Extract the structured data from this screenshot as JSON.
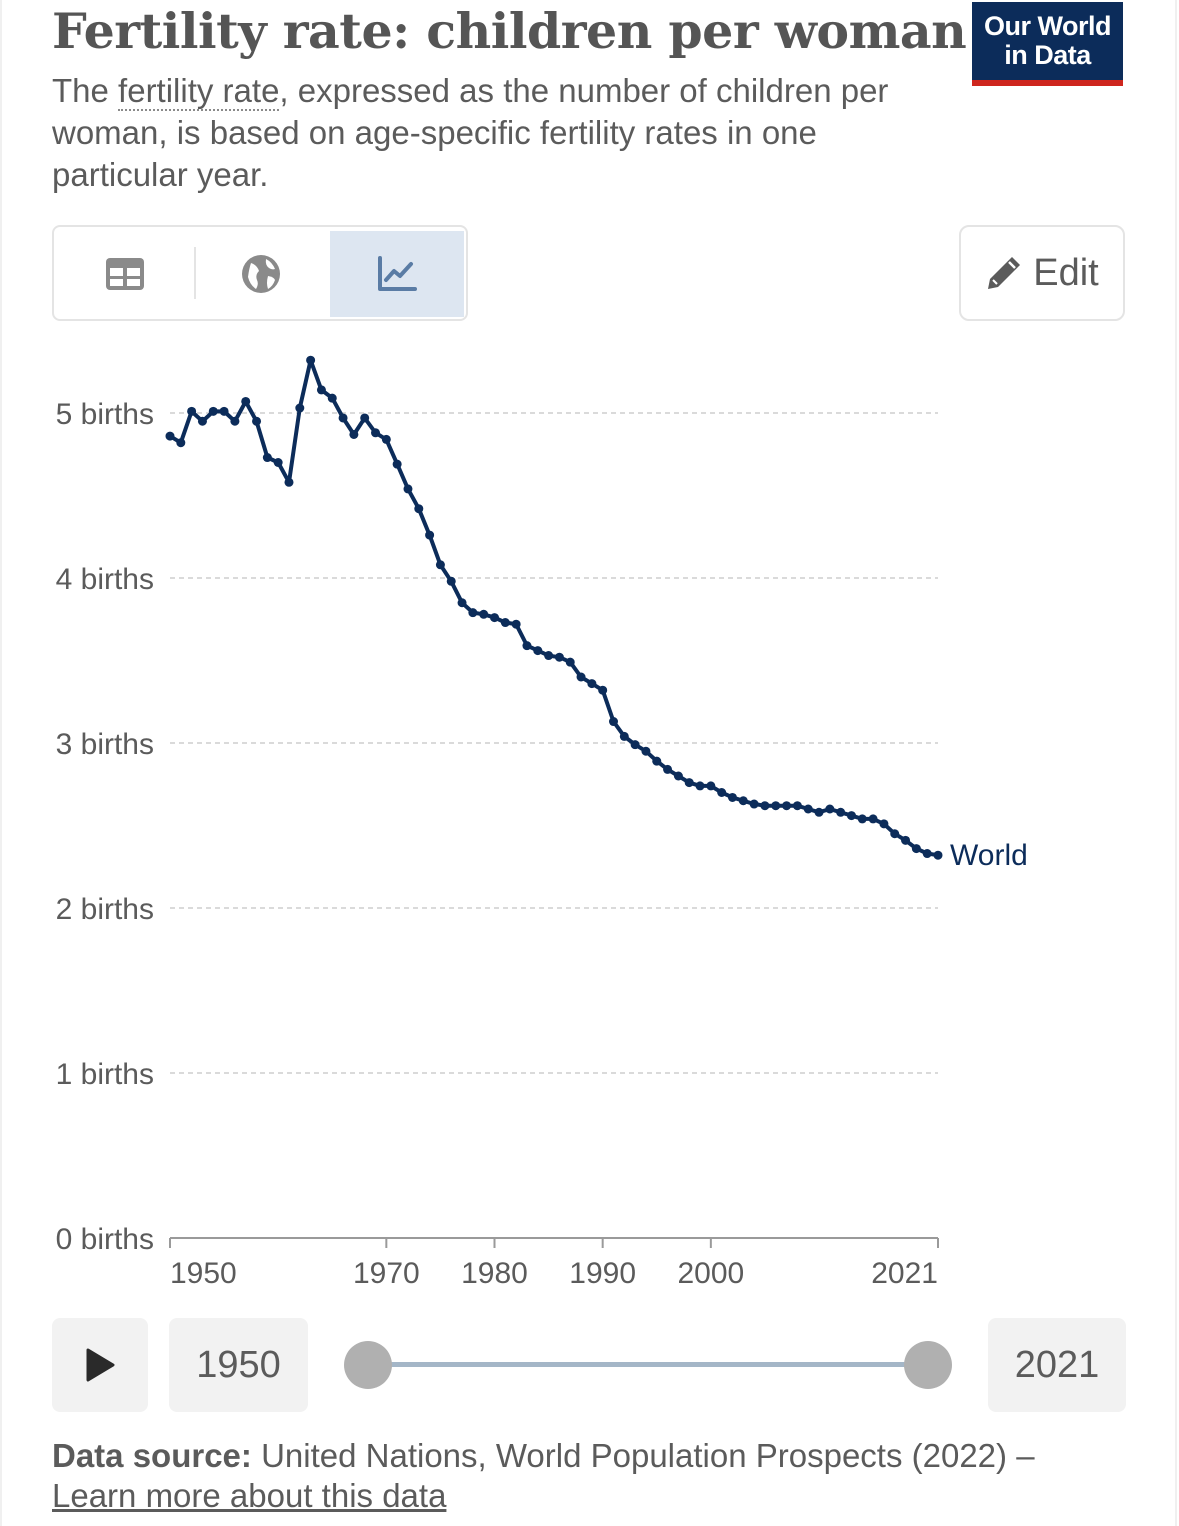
{
  "header": {
    "title": "Fertility rate: children per woman",
    "subtitle_before": "The ",
    "subtitle_link": "fertility rate",
    "subtitle_after": ", expressed as the number of children per woman, is based on age-specific fertility rates in one particular year.",
    "logo_line1": "Our World",
    "logo_line2": "in Data"
  },
  "tabs": [
    {
      "name": "table",
      "icon": "table-icon",
      "active": false
    },
    {
      "name": "map",
      "icon": "globe-icon",
      "active": false
    },
    {
      "name": "chart",
      "icon": "line-chart-icon",
      "active": true
    }
  ],
  "edit_label": "Edit",
  "timeline": {
    "start_label": "1950",
    "end_label": "2021",
    "start_value": 1950,
    "end_value": 2021
  },
  "footer": {
    "source_label": "Data source:",
    "source_text": " United Nations, World Population Prospects (2022) –",
    "link_text": "Learn more about this data"
  },
  "colors": {
    "line": "#0c2c5a",
    "grid": "#dadada",
    "text": "#5b5b5b",
    "logo_bg": "#0c2c5a",
    "logo_accent": "#ce261e",
    "active_tab": "#dde6f1"
  },
  "chart_data": {
    "type": "line",
    "title": "Fertility rate: children per woman",
    "ylim": [
      0,
      5
    ],
    "y_ticks": [
      0,
      1,
      2,
      3,
      4,
      5
    ],
    "y_tick_labels": [
      "0 births",
      "1 births",
      "2 births",
      "3 births",
      "4 births",
      "5 births"
    ],
    "x_ticks": [
      1950,
      1970,
      1980,
      1990,
      2000,
      2021
    ],
    "x_tick_labels": [
      "1950",
      "1970",
      "1980",
      "1990",
      "2000",
      "2021"
    ],
    "grid": true,
    "series": [
      {
        "name": "World",
        "color": "#0c2c5a",
        "x": [
          1950,
          1951,
          1952,
          1953,
          1954,
          1955,
          1956,
          1957,
          1958,
          1959,
          1960,
          1961,
          1962,
          1963,
          1964,
          1965,
          1966,
          1967,
          1968,
          1969,
          1970,
          1971,
          1972,
          1973,
          1974,
          1975,
          1976,
          1977,
          1978,
          1979,
          1980,
          1981,
          1982,
          1983,
          1984,
          1985,
          1986,
          1987,
          1988,
          1989,
          1990,
          1991,
          1992,
          1993,
          1994,
          1995,
          1996,
          1997,
          1998,
          1999,
          2000,
          2001,
          2002,
          2003,
          2004,
          2005,
          2006,
          2007,
          2008,
          2009,
          2010,
          2011,
          2012,
          2013,
          2014,
          2015,
          2016,
          2017,
          2018,
          2019,
          2020,
          2021
        ],
        "values": [
          4.86,
          4.82,
          5.01,
          4.95,
          5.01,
          5.01,
          4.95,
          5.07,
          4.95,
          4.73,
          4.7,
          4.58,
          5.03,
          5.32,
          5.14,
          5.09,
          4.97,
          4.87,
          4.97,
          4.88,
          4.84,
          4.69,
          4.54,
          4.42,
          4.26,
          4.08,
          3.98,
          3.85,
          3.79,
          3.78,
          3.76,
          3.73,
          3.72,
          3.59,
          3.56,
          3.53,
          3.52,
          3.49,
          3.4,
          3.36,
          3.32,
          3.13,
          3.04,
          2.99,
          2.95,
          2.89,
          2.84,
          2.8,
          2.76,
          2.74,
          2.74,
          2.7,
          2.67,
          2.65,
          2.63,
          2.62,
          2.62,
          2.62,
          2.62,
          2.6,
          2.58,
          2.6,
          2.58,
          2.56,
          2.54,
          2.54,
          2.51,
          2.45,
          2.41,
          2.36,
          2.33,
          2.32
        ]
      }
    ]
  }
}
